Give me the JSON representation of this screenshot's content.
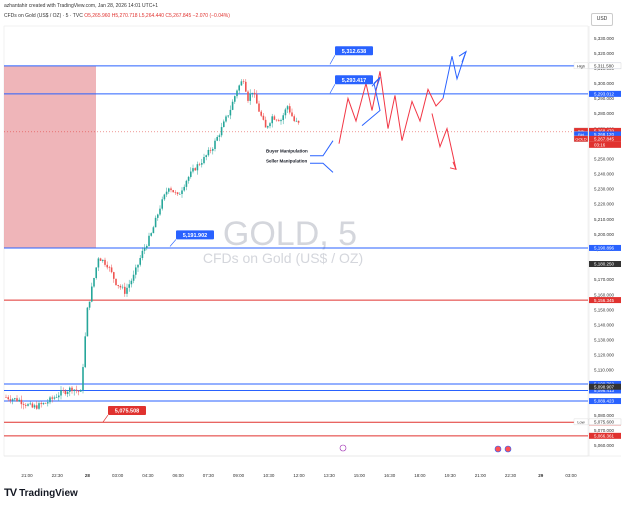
{
  "header": {
    "credit": "azhantahir created with TradingView.com, Jan 28, 2026 14:01 UTC+1",
    "symbol": "CFDs on Gold (US$ / OZ) · 5 · TVC",
    "ohlc": "O5,265.960 H5,270.718 L5,264.440 C5,267.845 −2.070 (−0.04%)"
  },
  "currency": "USD",
  "watermark": {
    "title": "GOLD, 5",
    "subtitle": "CFDs on Gold (US$ / OZ)"
  },
  "footer": {
    "logo": "TV",
    "brand": "TradingView"
  },
  "chart_data": {
    "type": "candlestick",
    "ylim": [
      5053,
      5338
    ],
    "yticks": [
      5330,
      5320,
      5310,
      5300,
      5290,
      5280,
      5270,
      5260,
      5250,
      5240,
      5230,
      5220,
      5210,
      5200,
      5190,
      5180,
      5170,
      5160,
      5150,
      5140,
      5130,
      5120,
      5110,
      5100,
      5090,
      5080,
      5070,
      5060
    ],
    "xticks": [
      "21:00",
      "22:30",
      "28",
      "03:00",
      "04:30",
      "06:00",
      "07:30",
      "09:00",
      "10:30",
      "12:00",
      "13:30",
      "15:00",
      "16:30",
      "18:00",
      "19:30",
      "21:00",
      "22:30",
      "29",
      "03:00"
    ],
    "price_path": [
      [
        0,
        5092
      ],
      [
        6,
        5090
      ],
      [
        12,
        5085
      ],
      [
        18,
        5088
      ],
      [
        24,
        5094
      ],
      [
        30,
        5098
      ],
      [
        34,
        5095
      ],
      [
        37,
        5150
      ],
      [
        42,
        5185
      ],
      [
        46,
        5180
      ],
      [
        50,
        5168
      ],
      [
        54,
        5162
      ],
      [
        58,
        5172
      ],
      [
        62,
        5188
      ],
      [
        66,
        5200
      ],
      [
        70,
        5218
      ],
      [
        74,
        5232
      ],
      [
        78,
        5225
      ],
      [
        82,
        5236
      ],
      [
        86,
        5244
      ],
      [
        90,
        5250
      ],
      [
        94,
        5258
      ],
      [
        98,
        5270
      ],
      [
        102,
        5283
      ],
      [
        105,
        5296
      ],
      [
        108,
        5303
      ],
      [
        110,
        5290
      ],
      [
        112,
        5295
      ],
      [
        115,
        5282
      ],
      [
        118,
        5270
      ],
      [
        121,
        5278
      ],
      [
        125,
        5276
      ],
      [
        128,
        5285
      ],
      [
        131,
        5275
      ],
      [
        134,
        5272
      ]
    ],
    "horizontal_levels": [
      {
        "price": 5311.577,
        "label": "5,311.577",
        "color": "#2962ff"
      },
      {
        "price": 5293.012,
        "label": "5,293.012",
        "color": "#2962ff"
      },
      {
        "price": 5190.896,
        "label": "5,190.896",
        "color": "#2962ff"
      },
      {
        "price": 5156.345,
        "label": "5,156.345",
        "color": "#e0322f"
      },
      {
        "price": 5100.762,
        "label": "5,100.762",
        "color": "#2962ff"
      },
      {
        "price": 5096.413,
        "label": "5,096.413",
        "color": "#2962ff"
      },
      {
        "price": 5089.423,
        "label": "5,089.423",
        "color": "#2962ff"
      },
      {
        "price": 5075.338,
        "label": "5,075.338",
        "color": "#e0322f"
      },
      {
        "price": 5066.361,
        "label": "5,066.361",
        "color": "#e0322f"
      }
    ],
    "callouts": [
      {
        "price": 5312.638,
        "label": "5,312.638",
        "color": "#2962ff"
      },
      {
        "price": 5293.417,
        "label": "5,293.417",
        "color": "#2962ff"
      },
      {
        "price": 5191.902,
        "label": "5,191.902",
        "color": "#2962ff"
      },
      {
        "price": 5075.508,
        "label": "5,075.508",
        "color": "#e0322f"
      }
    ],
    "axis_tags": [
      {
        "name": "High",
        "price": 5311.58,
        "label": "5,311.580"
      },
      {
        "name": "Ask",
        "price": 5268.47,
        "label": "5,268.470"
      },
      {
        "name": "Bid",
        "price": 5268.12,
        "label": "5,268.120"
      },
      {
        "name": "GOLD",
        "price": 5267.845,
        "label": "5,267.845"
      },
      {
        "name": "",
        "price": 5180.25,
        "label": "5,180.250"
      },
      {
        "name": "",
        "price": 5098.907,
        "label": "5,098.907"
      },
      {
        "name": "Low",
        "price": 5075.6,
        "label": "5,075.600"
      }
    ],
    "countdown": "03:16",
    "annotations": [
      "Buyer Manipulation",
      "Seller Manipulation"
    ]
  }
}
